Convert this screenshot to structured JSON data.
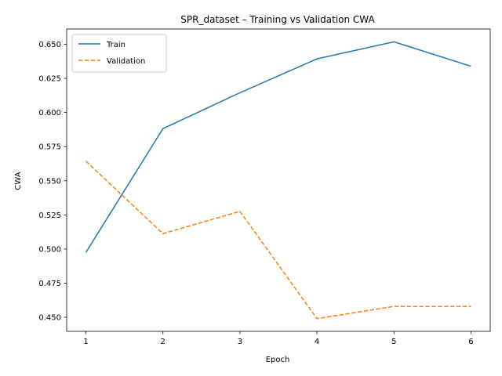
{
  "chart_data": {
    "type": "line",
    "title": "SPR_dataset – Training vs Validation CWA",
    "xlabel": "Epoch",
    "ylabel": "CWA",
    "x": [
      1,
      2,
      3,
      4,
      5,
      6
    ],
    "xlim": [
      0.75,
      6.25
    ],
    "ylim": [
      0.4397,
      0.6612
    ],
    "xticks": [
      1,
      2,
      3,
      4,
      5,
      6
    ],
    "yticks": [
      0.45,
      0.475,
      0.5,
      0.525,
      0.55,
      0.575,
      0.6,
      0.625,
      0.65
    ],
    "ytick_labels": [
      "0.450",
      "0.475",
      "0.500",
      "0.525",
      "0.550",
      "0.575",
      "0.600",
      "0.625",
      "0.650"
    ],
    "grid": false,
    "legend_position": "top-left",
    "series": [
      {
        "name": "Train",
        "values": [
          0.4975,
          0.5882,
          0.6145,
          0.6393,
          0.6518,
          0.6339
        ],
        "color": "#1f77b4",
        "style": "solid"
      },
      {
        "name": "Validation",
        "values": [
          0.5644,
          0.5113,
          0.5276,
          0.449,
          0.458,
          0.458
        ],
        "color": "#ff7f0e",
        "style": "dashed"
      }
    ]
  }
}
